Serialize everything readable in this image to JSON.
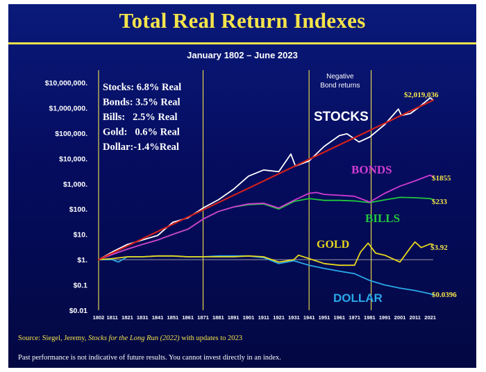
{
  "title": "Total Real Return Indexes",
  "subtitle": "January 1802 – June 2023",
  "source_prefix": "Source: Siegel, Jeremy, ",
  "source_book": "Stocks for the Long Run (2022)",
  "source_suffix": " with updates to 2023",
  "disclaimer": "Past performance is not indicative of future results. You cannot invest directly in an index.",
  "legend_box": [
    "Stocks: 6.8% Real",
    "Bonds: 3.5% Real",
    "Bills:   2.5% Real",
    "Gold:   0.6% Real",
    "Dollar:-1.4%Real"
  ],
  "negative_bond_label": [
    "Negative",
    "Bond returns"
  ],
  "colors": {
    "stocks": "#ffffff",
    "trend": "#d0201c",
    "bonds": "#d23cd2",
    "bills": "#22c83c",
    "gold": "#e8d81c",
    "dollar": "#2aa8e8",
    "text_yellow": "#f5e44b",
    "guide": "#f5e44b"
  },
  "chart_data": {
    "type": "line",
    "title": "Total Real Return Indexes",
    "subtitle": "January 1802 – June 2023",
    "y_scale": "log",
    "ylim": [
      0.01,
      10000000
    ],
    "xlim": [
      1802,
      2023
    ],
    "y_tick_labels": [
      "$10,000,000.",
      "$1,000,000.",
      "$100,000.",
      "$10,000.",
      "$1,000.",
      "$100.",
      "$10.",
      "$1.",
      "$0.1",
      "$0.01"
    ],
    "y_tick_values": [
      10000000,
      1000000,
      100000,
      10000,
      1000,
      100,
      10,
      1,
      0.1,
      0.01
    ],
    "x_tick_labels": [
      "1802",
      "1811",
      "1821",
      "1831",
      "1841",
      "1851",
      "1861",
      "1871",
      "1881",
      "1891",
      "1901",
      "1911",
      "1921",
      "1931",
      "1941",
      "1951",
      "1961",
      "1971",
      "1981",
      "1991",
      "2001",
      "2011",
      "2021"
    ],
    "guide_lines": [
      1802,
      1871,
      1941,
      1982
    ],
    "annotations": {
      "negative_bond_returns": [
        1941,
        1982
      ]
    },
    "series": [
      {
        "name": "STOCKS",
        "end_label": "$2,019,036",
        "x": [
          1802,
          1811,
          1821,
          1831,
          1841,
          1851,
          1861,
          1871,
          1881,
          1891,
          1901,
          1911,
          1921,
          1929,
          1932,
          1941,
          1951,
          1961,
          1966,
          1974,
          1981,
          1991,
          2000,
          2002,
          2008,
          2013,
          2021,
          2023
        ],
        "y": [
          1,
          2,
          4,
          6,
          9,
          30,
          45,
          110,
          230,
          600,
          2000,
          3500,
          3000,
          15000,
          5000,
          8000,
          30000,
          80000,
          95000,
          45000,
          70000,
          220000,
          900000,
          500000,
          600000,
          1000000,
          2500000,
          2019036
        ]
      },
      {
        "name": "Trend",
        "x": [
          1802,
          2023
        ],
        "y": [
          1,
          2019036
        ]
      },
      {
        "name": "BONDS",
        "end_label": "$1855",
        "x": [
          1802,
          1811,
          1821,
          1831,
          1841,
          1851,
          1861,
          1871,
          1881,
          1891,
          1901,
          1911,
          1921,
          1931,
          1941,
          1946,
          1951,
          1961,
          1971,
          1981,
          1991,
          2001,
          2011,
          2021,
          2023
        ],
        "y": [
          1,
          1.6,
          2.6,
          4,
          6,
          10,
          16,
          40,
          80,
          120,
          160,
          170,
          110,
          220,
          420,
          450,
          380,
          350,
          320,
          190,
          420,
          800,
          1300,
          2200,
          1855
        ]
      },
      {
        "name": "BILLS",
        "end_label": "$233",
        "x": [
          1802,
          1811,
          1821,
          1831,
          1841,
          1851,
          1861,
          1871,
          1881,
          1891,
          1901,
          1911,
          1921,
          1931,
          1941,
          1951,
          1961,
          1971,
          1981,
          1991,
          2001,
          2011,
          2021,
          2023
        ],
        "y": [
          1,
          1.6,
          2.6,
          4,
          6,
          10,
          16,
          40,
          80,
          120,
          150,
          160,
          100,
          200,
          260,
          220,
          220,
          210,
          180,
          230,
          290,
          280,
          260,
          233
        ]
      },
      {
        "name": "GOLD",
        "end_label": "$3.92",
        "x": [
          1802,
          1811,
          1821,
          1831,
          1841,
          1851,
          1861,
          1871,
          1881,
          1891,
          1901,
          1911,
          1921,
          1931,
          1934,
          1941,
          1951,
          1961,
          1971,
          1975,
          1980,
          1985,
          1991,
          2001,
          2008,
          2011,
          2015,
          2021,
          2023
        ],
        "y": [
          1,
          1.1,
          1.3,
          1.3,
          1.4,
          1.4,
          1.3,
          1.3,
          1.3,
          1.3,
          1.4,
          1.3,
          0.8,
          1.0,
          1.5,
          1.1,
          0.7,
          0.6,
          0.6,
          2.0,
          4.5,
          1.8,
          1.5,
          0.8,
          3.0,
          5.0,
          3.0,
          4.2,
          3.92
        ]
      },
      {
        "name": "DOLLAR",
        "end_label": "$0.0396",
        "x": [
          1802,
          1811,
          1815,
          1821,
          1831,
          1841,
          1851,
          1861,
          1871,
          1881,
          1891,
          1901,
          1911,
          1921,
          1931,
          1941,
          1951,
          1961,
          1971,
          1981,
          1991,
          2001,
          2011,
          2021,
          2023
        ],
        "y": [
          1,
          1.0,
          0.8,
          1.3,
          1.3,
          1.4,
          1.4,
          1.3,
          1.3,
          1.4,
          1.4,
          1.4,
          1.2,
          0.7,
          0.9,
          0.6,
          0.45,
          0.35,
          0.28,
          0.15,
          0.1,
          0.075,
          0.06,
          0.045,
          0.0396
        ]
      }
    ],
    "series_labels": [
      "STOCKS",
      "BONDS",
      "BILLS",
      "GOLD",
      "DOLLAR"
    ]
  }
}
